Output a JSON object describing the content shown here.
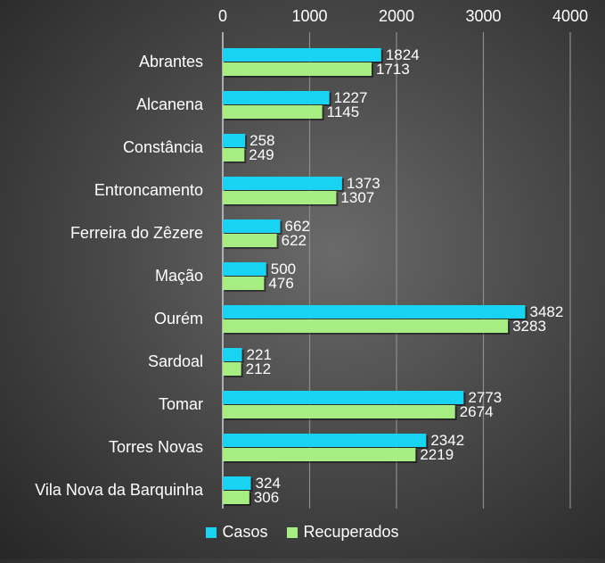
{
  "chart_data": {
    "type": "bar",
    "orientation": "horizontal",
    "categories": [
      "Abrantes",
      "Alcanena",
      "Constância",
      "Entroncamento",
      "Ferreira do Zêzere",
      "Mação",
      "Ourém",
      "Sardoal",
      "Tomar",
      "Torres Novas",
      "Vila Nova da Barquinha"
    ],
    "series": [
      {
        "name": "Casos",
        "color": "#19d3f3",
        "values": [
          1824,
          1227,
          258,
          1373,
          662,
          500,
          3482,
          221,
          2773,
          2342,
          324
        ]
      },
      {
        "name": "Recuperados",
        "color": "#a6ee82",
        "values": [
          1713,
          1145,
          249,
          1307,
          622,
          476,
          3283,
          212,
          2674,
          2219,
          306
        ]
      }
    ],
    "xlim": [
      0,
      4000
    ],
    "xticks": [
      "0",
      "1000",
      "2000",
      "3000",
      "4000"
    ],
    "x_axis_position": "top",
    "grid": true,
    "data_labels": true,
    "legend_position": "bottom"
  }
}
